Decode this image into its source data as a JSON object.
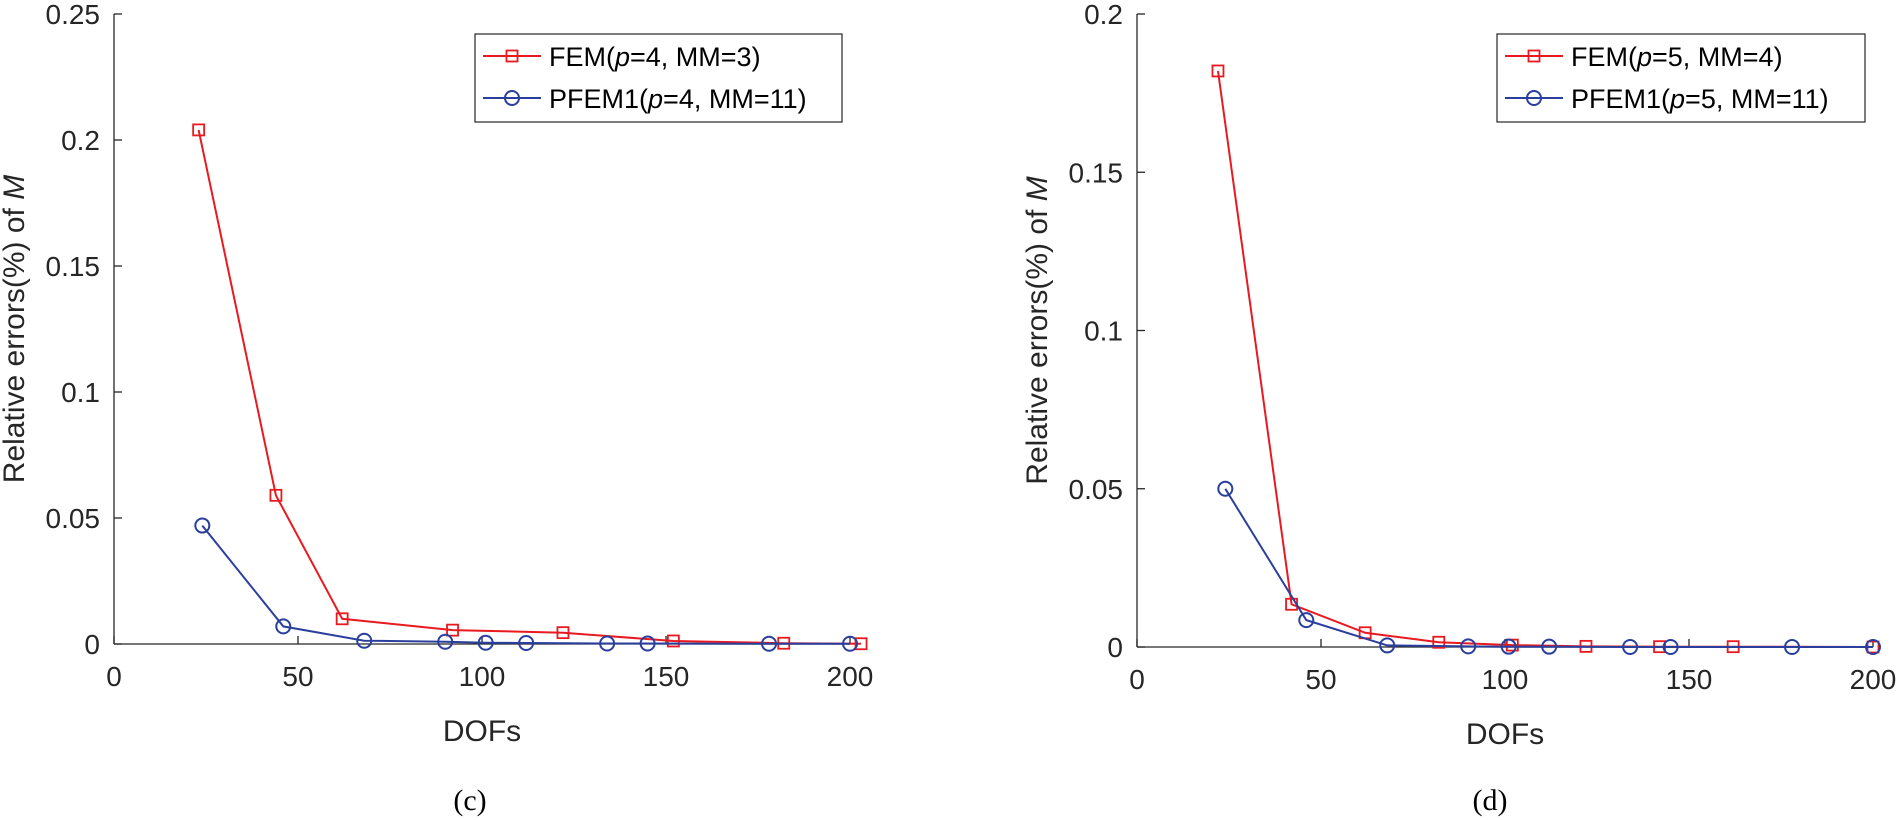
{
  "chart_data": [
    {
      "type": "line",
      "caption": "(c)",
      "xlabel": "DOFs",
      "ylabel": "Relative errors(%) of M",
      "xlim": [
        0,
        200
      ],
      "ylim": [
        0,
        0.25
      ],
      "xticks": [
        0,
        50,
        100,
        150,
        200
      ],
      "xtick_labels": [
        "0",
        "50",
        "100",
        "150",
        "200"
      ],
      "yticks": [
        0,
        0.05,
        0.1,
        0.15,
        0.2,
        0.25
      ],
      "ytick_labels": [
        "0",
        "0.05",
        "0.1",
        "0.15",
        "0.2",
        "0.25"
      ],
      "legend_position": "top-right",
      "series": [
        {
          "name": "FEM(p=4, MM=3)",
          "legend": {
            "prefix": "FEM(",
            "var": "p",
            "suffix": "=4, MM=3)"
          },
          "color": "#e8191f",
          "marker": "square",
          "x": [
            23,
            44,
            62,
            92,
            122,
            152,
            182,
            203
          ],
          "y": [
            0.204,
            0.059,
            0.01,
            0.0055,
            0.0045,
            0.0012,
            0.0003,
            0.0001
          ]
        },
        {
          "name": "PFEM1(p=4, MM=11)",
          "legend": {
            "prefix": "PFEM1(",
            "var": "p",
            "suffix": "=4, MM=11)"
          },
          "color": "#2a3f9d",
          "marker": "circle",
          "x": [
            24,
            46,
            68,
            90,
            101,
            112,
            134,
            145,
            178,
            200
          ],
          "y": [
            0.047,
            0.007,
            0.0013,
            0.0009,
            0.0005,
            0.0004,
            0.0002,
            0.0002,
            0.0001,
            0.0001
          ]
        }
      ]
    },
    {
      "type": "line",
      "caption": "(d)",
      "xlabel": "DOFs",
      "ylabel": "Relative errors(%) of M",
      "xlim": [
        0,
        200
      ],
      "ylim": [
        0,
        0.2
      ],
      "xticks": [
        0,
        50,
        100,
        150,
        200
      ],
      "xtick_labels": [
        "0",
        "50",
        "100",
        "150",
        "200"
      ],
      "yticks": [
        0,
        0.05,
        0.1,
        0.15,
        0.2
      ],
      "ytick_labels": [
        "0",
        "0.05",
        "0.1",
        "0.15",
        "0.2"
      ],
      "legend_position": "top-right",
      "series": [
        {
          "name": "FEM(p=5, MM=4)",
          "legend": {
            "prefix": "FEM(",
            "var": "p",
            "suffix": "=5, MM=4)"
          },
          "color": "#e8191f",
          "marker": "square",
          "x": [
            22,
            42,
            62,
            82,
            102,
            122,
            142,
            162,
            200
          ],
          "y": [
            0.182,
            0.0135,
            0.0045,
            0.0015,
            0.0006,
            0.0002,
            0.0001,
            0.0001,
            0.0
          ]
        },
        {
          "name": "PFEM1(p=5, MM=11)",
          "legend": {
            "prefix": "PFEM1(",
            "var": "p",
            "suffix": "=5, MM=11)"
          },
          "color": "#2a3f9d",
          "marker": "circle",
          "x": [
            24,
            46,
            68,
            90,
            101,
            112,
            134,
            145,
            178,
            200
          ],
          "y": [
            0.05,
            0.0085,
            0.0005,
            0.0002,
            0.0001,
            0.0001,
            0.0,
            0.0,
            0.0,
            0.0
          ]
        }
      ]
    }
  ]
}
